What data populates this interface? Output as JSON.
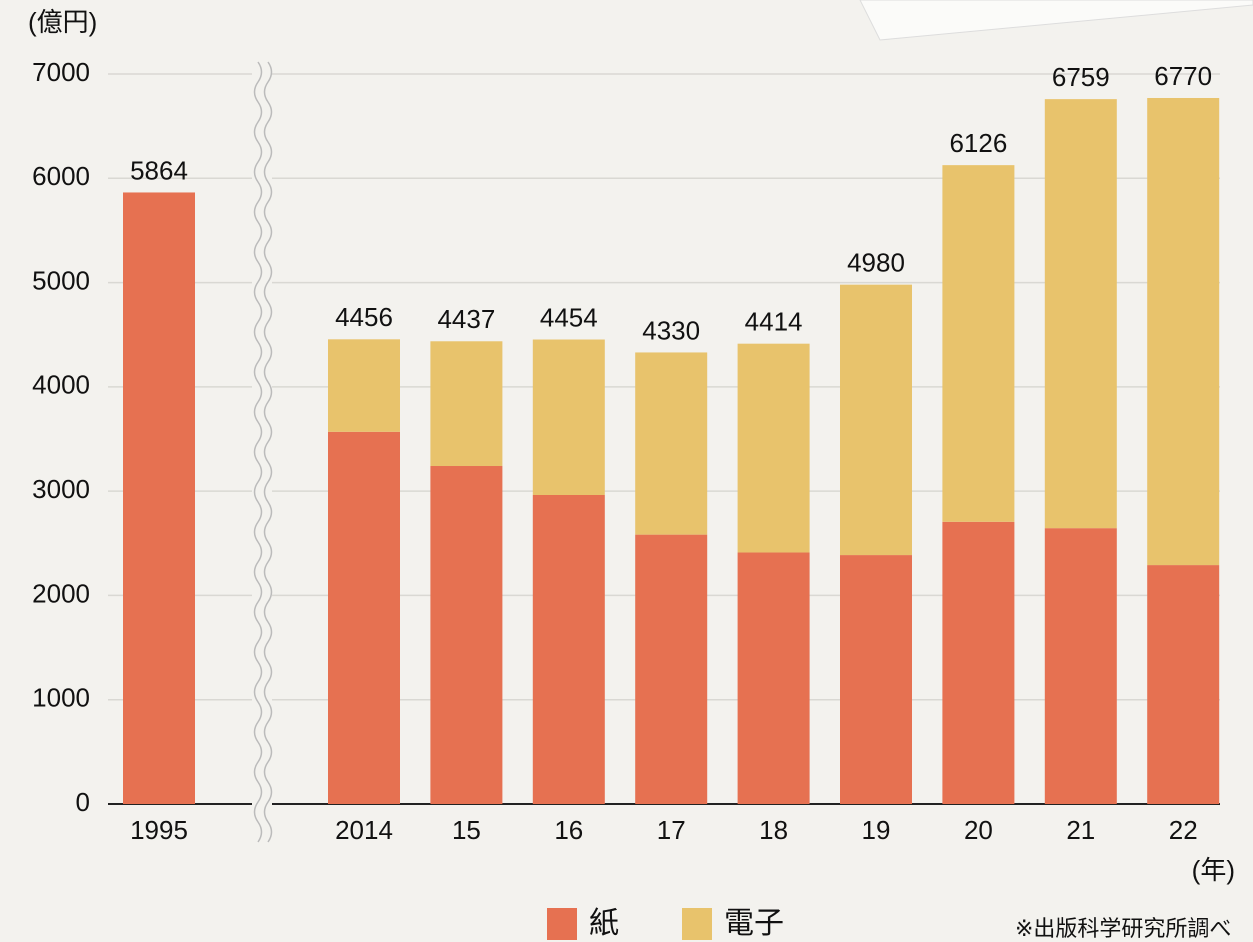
{
  "chart_data": {
    "type": "bar",
    "stacked": true,
    "y_label": "(億円)",
    "x_label": "(年)",
    "categories": [
      "1995",
      "2014",
      "15",
      "16",
      "17",
      "18",
      "19",
      "20",
      "21",
      "22"
    ],
    "series": [
      {
        "name": "紙",
        "color": "#e67151",
        "values": [
          5864,
          3569,
          3241,
          2963,
          2583,
          2412,
          2387,
          2706,
          2645,
          2291
        ]
      },
      {
        "name": "電子",
        "color": "#e8c36c",
        "values": [
          null,
          887,
          1196,
          1491,
          1747,
          2002,
          2593,
          3420,
          4114,
          4479
        ]
      }
    ],
    "totals": [
      5864,
      4456,
      4437,
      4454,
      4330,
      4414,
      4980,
      6126,
      6759,
      6770
    ],
    "ylim": [
      0,
      7000
    ],
    "yticks": [
      0,
      1000,
      2000,
      3000,
      4000,
      5000,
      6000,
      7000
    ],
    "grid": true,
    "note": "※出版科学研究所調べ"
  }
}
